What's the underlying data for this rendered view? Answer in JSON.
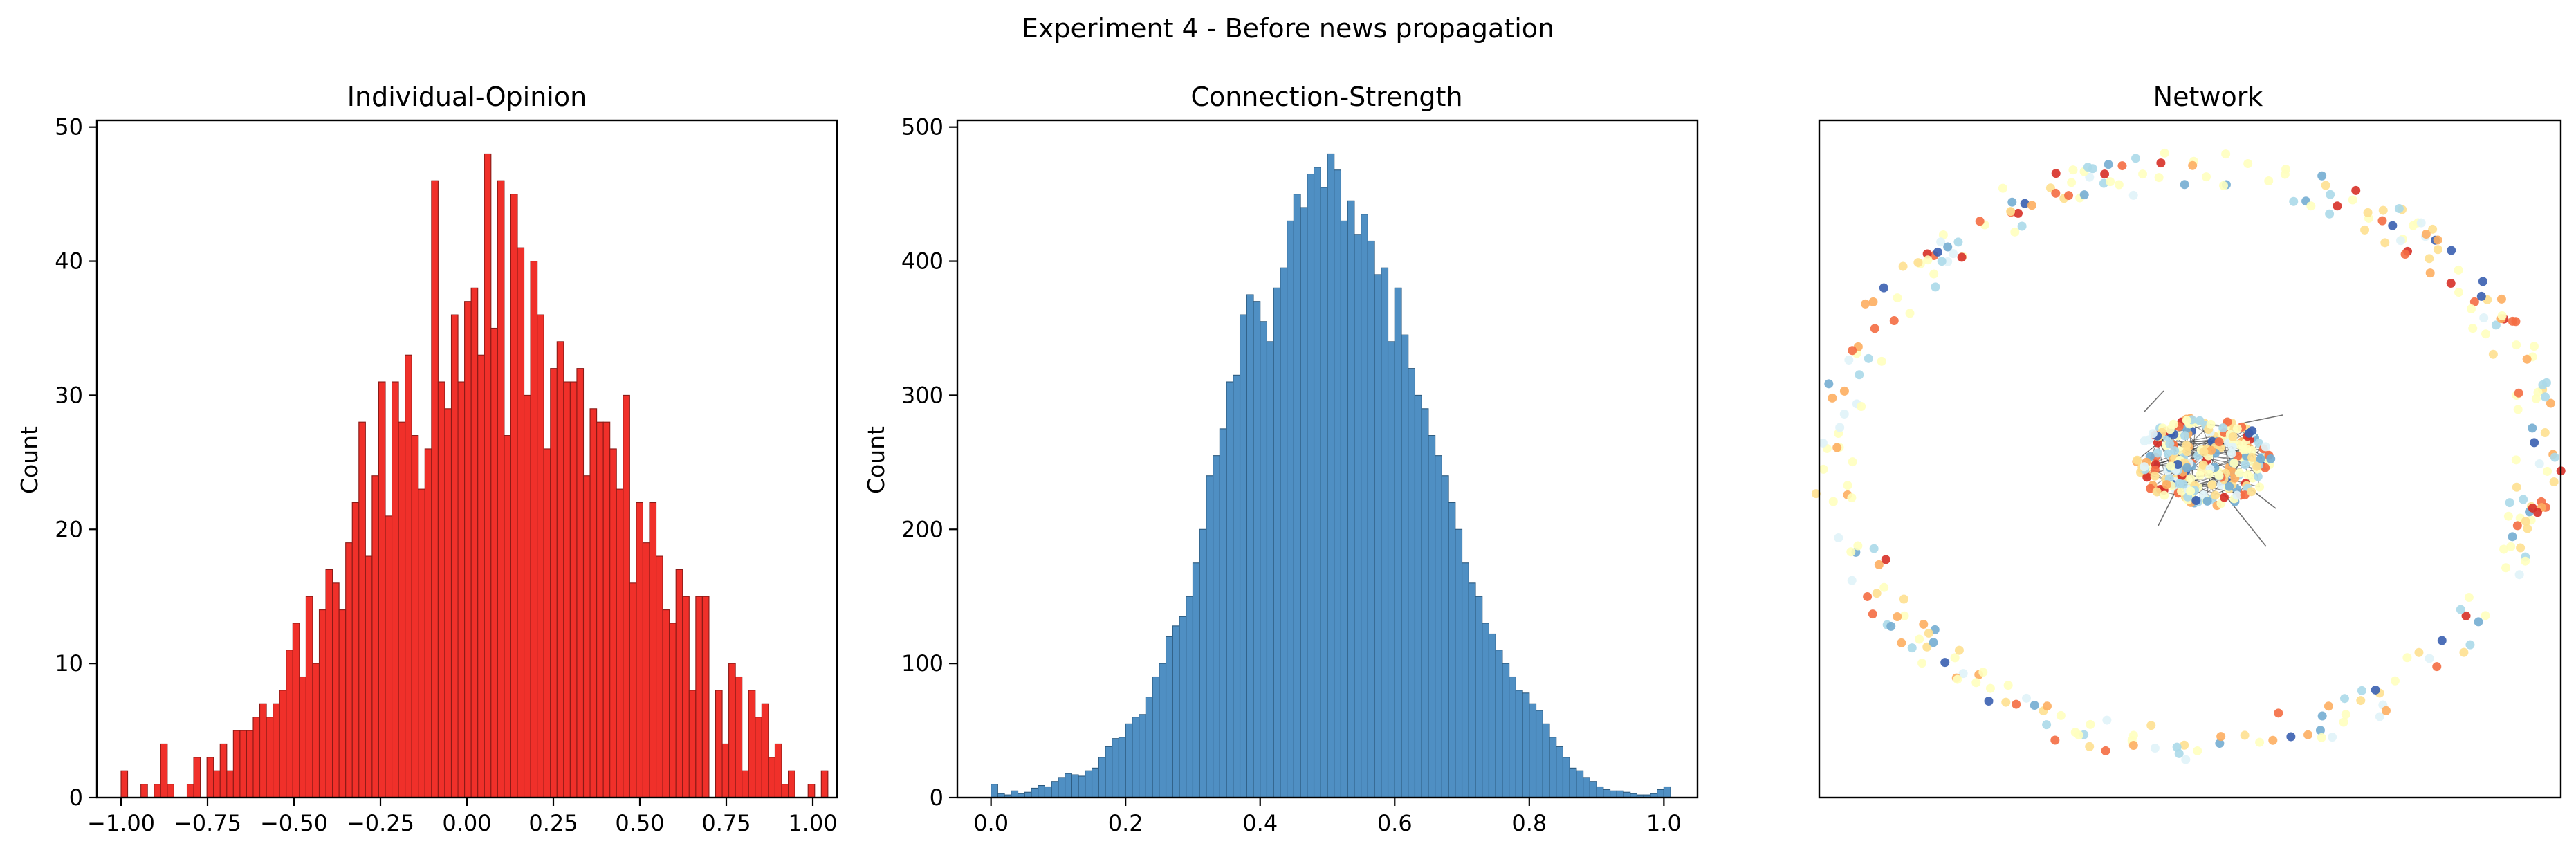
{
  "figure": {
    "suptitle": "Experiment 4 - Before news propagation"
  },
  "colors": {
    "opinion_bar": "#f0302a",
    "opinion_edge": "#8b1a16",
    "strength_bar": "#4f8fc3",
    "strength_edge": "#2c5a7e",
    "network_palette": [
      "#3a5fb0",
      "#74add1",
      "#abd9e9",
      "#e0f3f8",
      "#ffffbf",
      "#fee090",
      "#fdae61",
      "#f46d43",
      "#d73027"
    ]
  },
  "chart_data": [
    {
      "type": "bar",
      "title": "Individual-Opinion",
      "ylabel": "Count",
      "xlabel": "",
      "xlim": [
        -1.07,
        1.07
      ],
      "ylim": [
        0,
        50.5
      ],
      "xticks": [
        -1.0,
        -0.75,
        -0.5,
        -0.25,
        0.0,
        0.25,
        0.5,
        0.75,
        1.0
      ],
      "xtick_labels": [
        "−1.00",
        "−0.75",
        "−0.50",
        "−0.25",
        "0.00",
        "0.25",
        "0.50",
        "0.75",
        "1.00"
      ],
      "yticks": [
        0,
        10,
        20,
        30,
        40,
        50
      ],
      "ytick_labels": [
        "0",
        "10",
        "20",
        "30",
        "40",
        "50"
      ],
      "bin_start": -1.0,
      "bin_width": 0.0191,
      "values": [
        2,
        0,
        0,
        1,
        0,
        1,
        4,
        1,
        0,
        0,
        1,
        3,
        0,
        3,
        2,
        4,
        2,
        5,
        5,
        5,
        6,
        7,
        6,
        7,
        8,
        11,
        13,
        9,
        15,
        10,
        14,
        17,
        16,
        14,
        19,
        22,
        28,
        18,
        24,
        31,
        21,
        31,
        28,
        33,
        27,
        23,
        26,
        46,
        31,
        29,
        36,
        31,
        37,
        38,
        33,
        48,
        35,
        46,
        27,
        45,
        41,
        30,
        40,
        36,
        26,
        32,
        34,
        31,
        31,
        32,
        24,
        29,
        28,
        28,
        26,
        23,
        30,
        16,
        22,
        19,
        22,
        18,
        14,
        13,
        17,
        15,
        8,
        15,
        15,
        0,
        8,
        4,
        10,
        9,
        2,
        8,
        6,
        7,
        3,
        4,
        1,
        2,
        0,
        0,
        1,
        0,
        2
      ]
    },
    {
      "type": "bar",
      "title": "Connection-Strength",
      "ylabel": "Count",
      "xlabel": "",
      "xlim": [
        -0.05,
        1.05
      ],
      "ylim": [
        0,
        505
      ],
      "xticks": [
        0.0,
        0.2,
        0.4,
        0.6,
        0.8,
        1.0
      ],
      "xtick_labels": [
        "0.0",
        "0.2",
        "0.4",
        "0.6",
        "0.8",
        "1.0"
      ],
      "yticks": [
        0,
        100,
        200,
        300,
        400,
        500
      ],
      "ytick_labels": [
        "0",
        "100",
        "200",
        "300",
        "400",
        "500"
      ],
      "bin_start": 0.0,
      "bin_width": 0.01,
      "values": [
        10,
        3,
        2,
        5,
        3,
        4,
        7,
        9,
        8,
        12,
        15,
        18,
        17,
        16,
        20,
        22,
        30,
        38,
        44,
        45,
        55,
        60,
        62,
        75,
        90,
        100,
        120,
        128,
        135,
        150,
        175,
        200,
        240,
        255,
        275,
        310,
        315,
        360,
        375,
        370,
        355,
        340,
        380,
        395,
        430,
        450,
        440,
        465,
        470,
        455,
        480,
        468,
        430,
        445,
        420,
        435,
        415,
        390,
        395,
        340,
        380,
        345,
        320,
        300,
        290,
        270,
        255,
        240,
        220,
        200,
        175,
        160,
        150,
        130,
        122,
        110,
        100,
        90,
        80,
        78,
        70,
        65,
        55,
        45,
        38,
        30,
        22,
        20,
        15,
        12,
        8,
        6,
        5,
        5,
        4,
        3,
        2,
        2,
        3,
        6,
        8
      ]
    },
    {
      "type": "scatter",
      "title": "Network",
      "xlabel": "",
      "ylabel": "",
      "grid": false,
      "axes_ticks": false,
      "layout": "ring of loosely connected nodes around a dense central cluster",
      "node_color_scale": "RdYlBu reversed (opinion)"
    }
  ]
}
